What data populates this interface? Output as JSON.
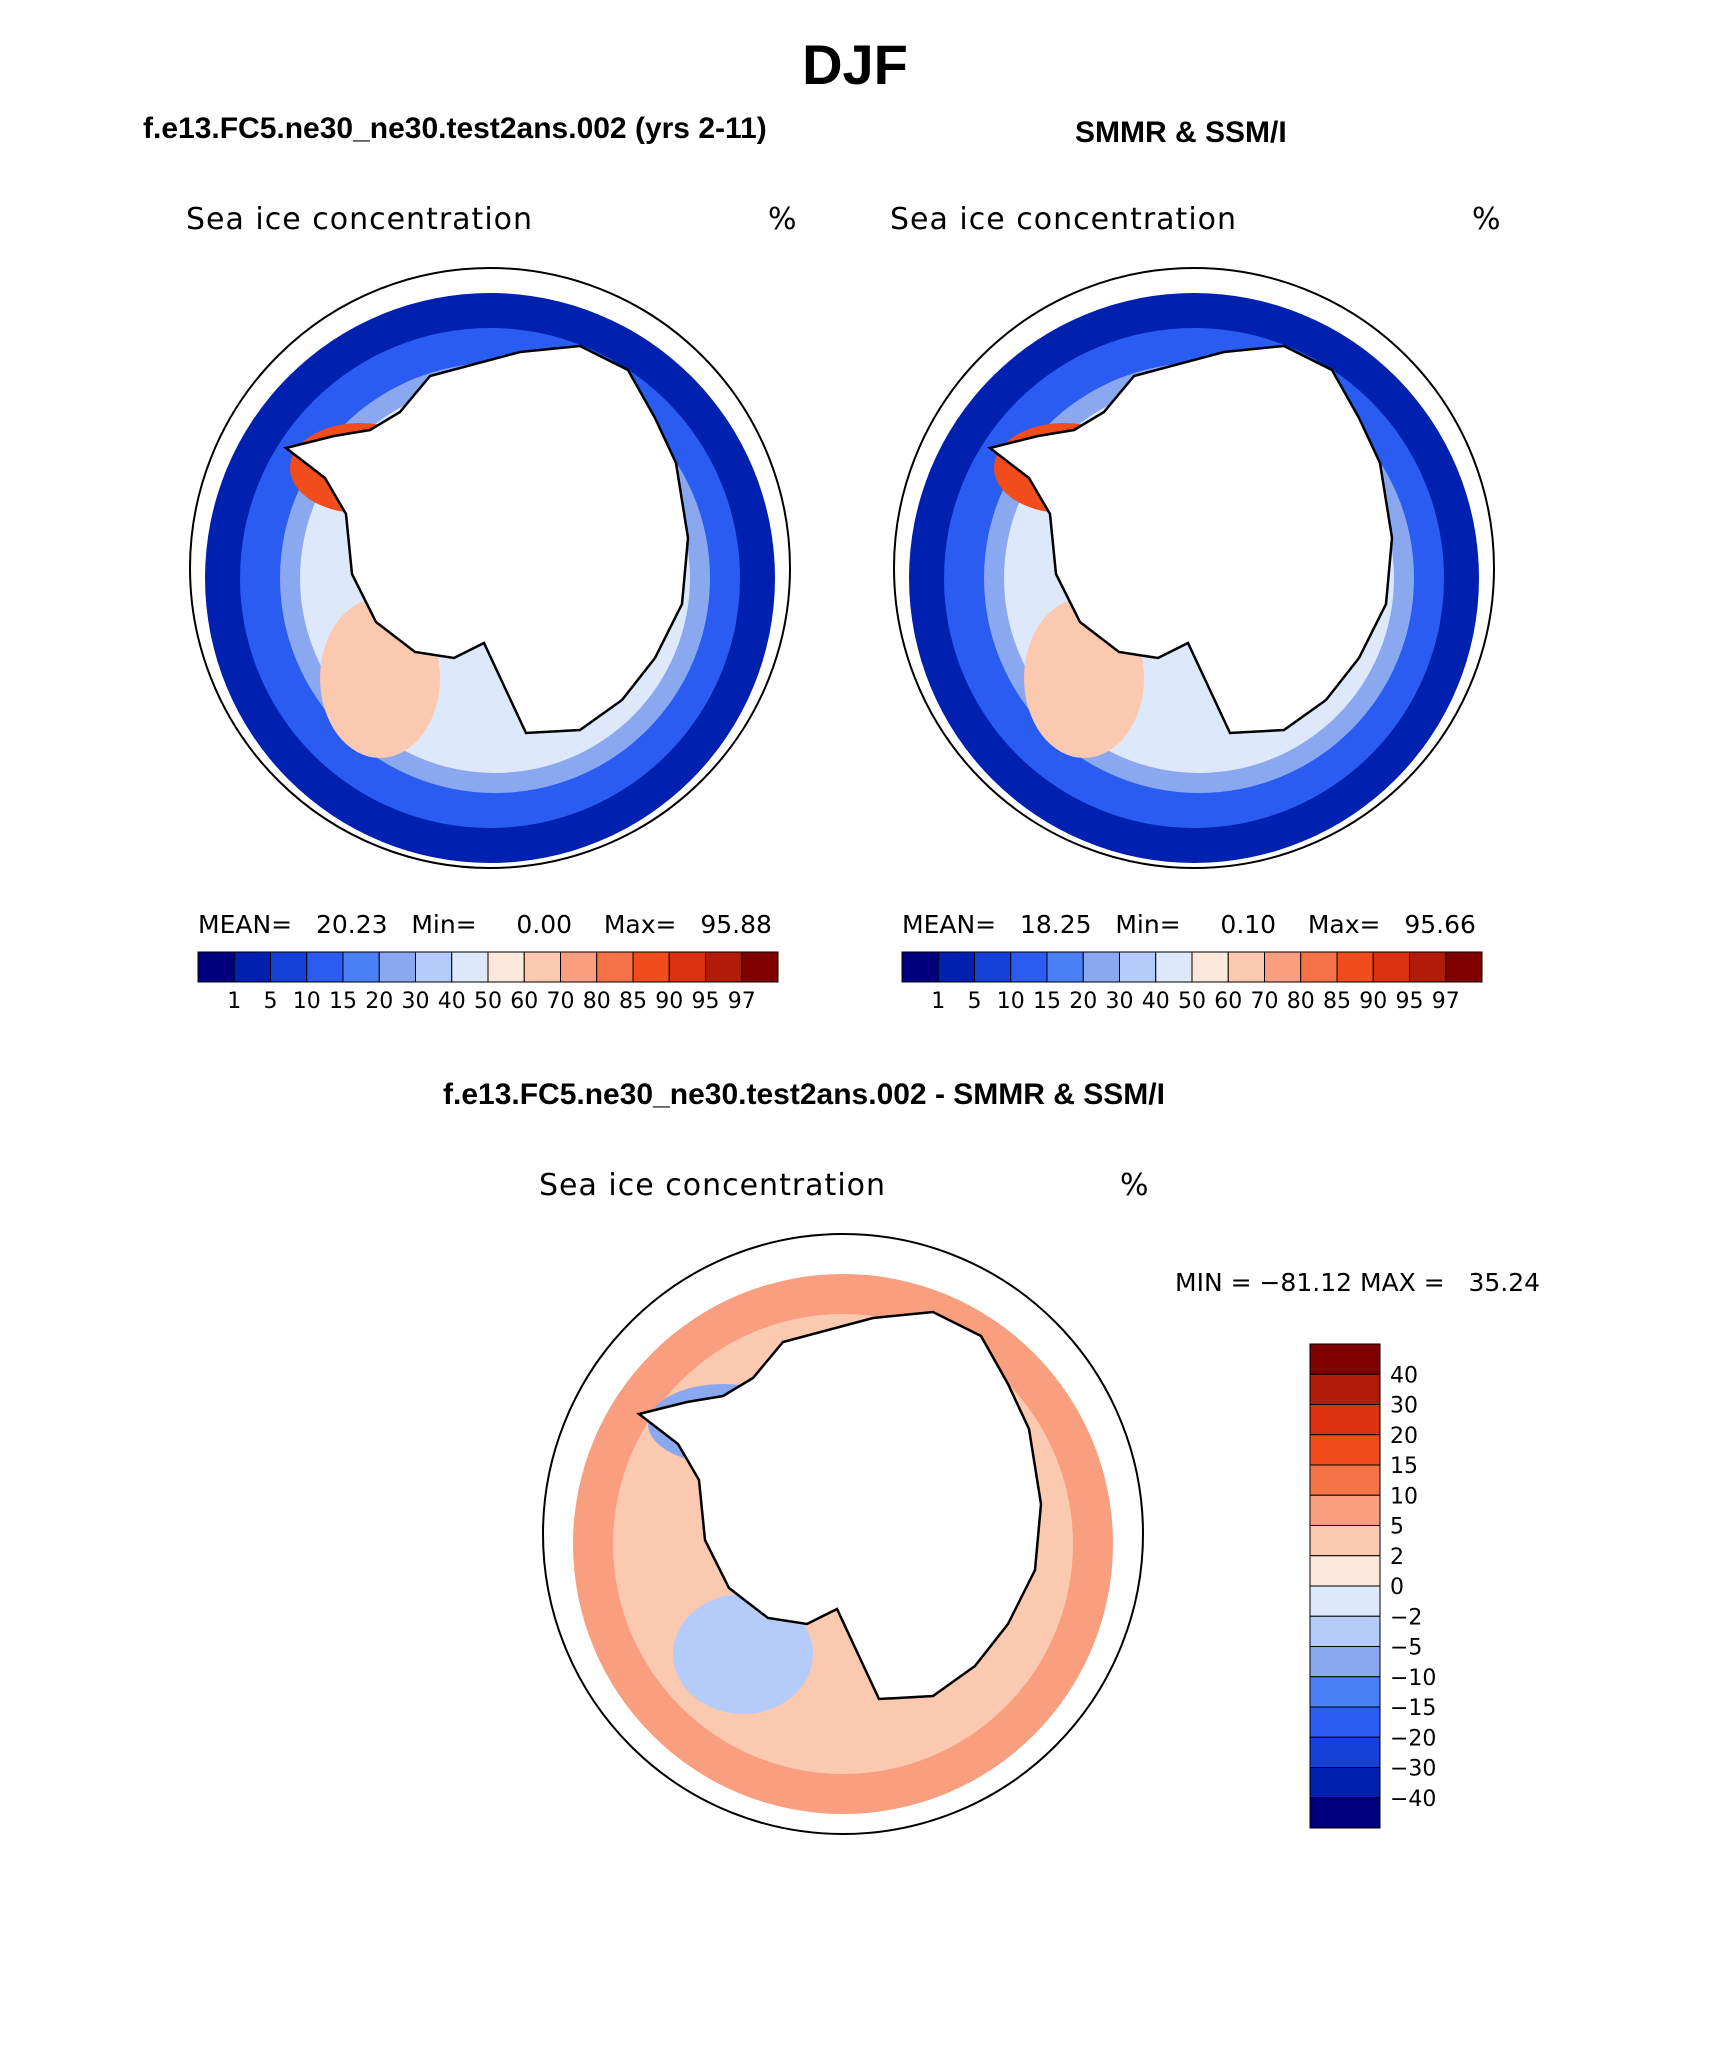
{
  "figure_title": "DJF",
  "panels": [
    {
      "case_title": "f.e13.FC5.ne30_ne30.test2ans.002 (yrs 2-11)",
      "plot_title": "Sea ice concentration",
      "units": "%",
      "stats_line": "MEAN=   20.23   Min=     0.00    Max=   95.88"
    },
    {
      "case_title": "SMMR & SSM/I",
      "plot_title": "Sea ice concentration",
      "units": "%",
      "stats_line": "MEAN=   18.25   Min=     0.10    Max=   95.66"
    },
    {
      "case_title": "f.e13.FC5.ne30_ne30.test2ans.002 - SMMR & SSM/I",
      "plot_title": "Sea ice concentration",
      "units": "%",
      "stats_line": "MIN = −81.12 MAX =   35.24"
    }
  ],
  "chart_data": [
    {
      "type": "heatmap",
      "projection": "south-polar-stereographic",
      "title": "Sea ice concentration",
      "units": "%",
      "stats": {
        "mean": 20.23,
        "min": 0.0,
        "max": 95.88
      },
      "colorbar": {
        "orientation": "horizontal",
        "levels": [
          "1",
          "5",
          "10",
          "15",
          "20",
          "30",
          "40",
          "50",
          "60",
          "70",
          "80",
          "85",
          "90",
          "95",
          "97"
        ],
        "colors": [
          "#00007f",
          "#0020b0",
          "#1440d8",
          "#2a5cf2",
          "#4a80f5",
          "#8aa8f0",
          "#b5ccfa",
          "#dde8fa",
          "#fce9da",
          "#fbc8b0",
          "#f99e7e",
          "#f57347",
          "#f24b1c",
          "#dc3110",
          "#b01c08",
          "#7f0000"
        ]
      }
    },
    {
      "type": "heatmap",
      "projection": "south-polar-stereographic",
      "title": "Sea ice concentration",
      "units": "%",
      "stats": {
        "mean": 18.25,
        "min": 0.1,
        "max": 95.66
      },
      "colorbar": {
        "orientation": "horizontal",
        "levels": [
          "1",
          "5",
          "10",
          "15",
          "20",
          "30",
          "40",
          "50",
          "60",
          "70",
          "80",
          "85",
          "90",
          "95",
          "97"
        ],
        "colors": [
          "#00007f",
          "#0020b0",
          "#1440d8",
          "#2a5cf2",
          "#4a80f5",
          "#8aa8f0",
          "#b5ccfa",
          "#dde8fa",
          "#fce9da",
          "#fbc8b0",
          "#f99e7e",
          "#f57347",
          "#f24b1c",
          "#dc3110",
          "#b01c08",
          "#7f0000"
        ]
      }
    },
    {
      "type": "heatmap",
      "projection": "south-polar-stereographic",
      "title": "Sea ice concentration",
      "units": "%",
      "stats": {
        "min": -81.12,
        "max": 35.24
      },
      "colorbar": {
        "orientation": "vertical",
        "levels": [
          "40",
          "30",
          "20",
          "15",
          "10",
          "5",
          "2",
          "0",
          "−2",
          "−5",
          "−10",
          "−15",
          "−20",
          "−30",
          "−40"
        ],
        "colors": [
          "#7f0000",
          "#b01c08",
          "#dc3110",
          "#f24b1c",
          "#f57347",
          "#f99e7e",
          "#fbc8b0",
          "#fce9da",
          "#dde8fa",
          "#b5ccfa",
          "#8aa8f0",
          "#4a80f5",
          "#2a5cf2",
          "#1440d8",
          "#0020b0",
          "#00007f"
        ]
      }
    }
  ]
}
